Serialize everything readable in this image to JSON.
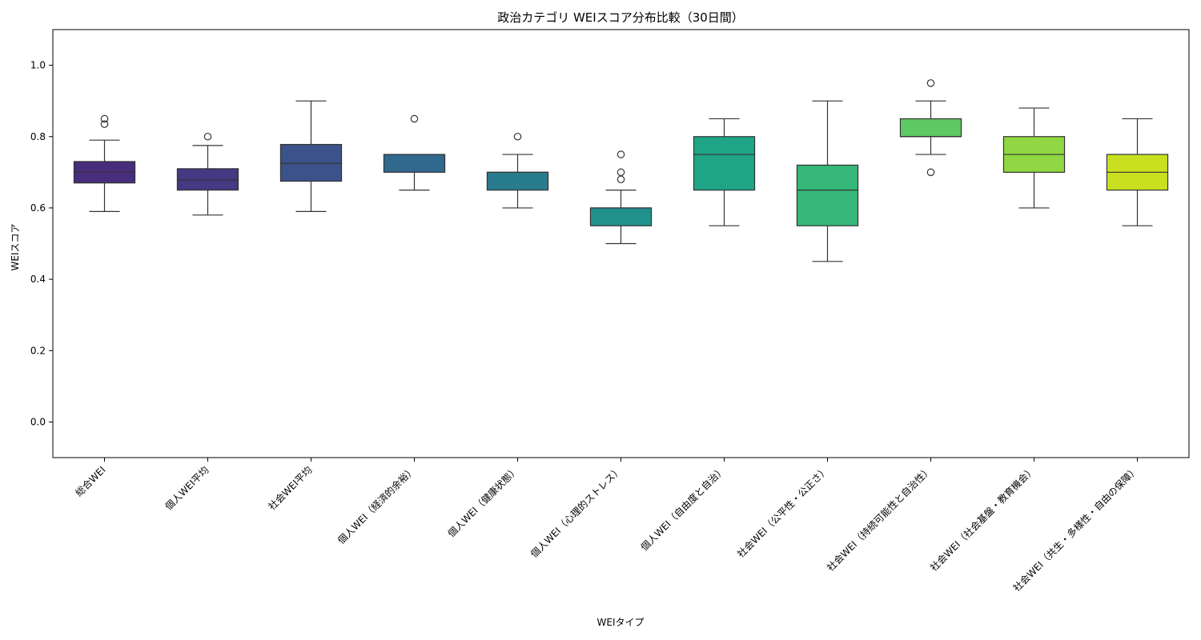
{
  "chart_data": {
    "type": "box",
    "title": "政治カテゴリ WEIスコア分布比較（30日間）",
    "xlabel": "WEIタイプ",
    "ylabel": "WEIスコア",
    "ylim": [
      -0.1,
      1.1
    ],
    "yticks": [
      0.0,
      0.2,
      0.4,
      0.6,
      0.8,
      1.0
    ],
    "ytick_labels": [
      "0.0",
      "0.2",
      "0.4",
      "0.6",
      "0.8",
      "1.0"
    ],
    "grid": false,
    "categories": [
      "総合WEI",
      "個人WEI平均",
      "社会WEI平均",
      "個人WEI（経済的余裕）",
      "個人WEI（健康状態）",
      "個人WEI（心理的ストレス）",
      "個人WEI（自由度と自治）",
      "社会WEI（公平性・公正さ）",
      "社会WEI（持続可能性と自治性）",
      "社会WEI（社会基盤・教育機会）",
      "社会WEI（共生・多様性・自由の保障）"
    ],
    "boxes": [
      {
        "whisker_low": 0.59,
        "q1": 0.67,
        "median": 0.7,
        "q3": 0.73,
        "whisker_high": 0.79,
        "outliers": [
          0.835,
          0.85
        ],
        "color": "#472d7b"
      },
      {
        "whisker_low": 0.58,
        "q1": 0.65,
        "median": 0.678,
        "q3": 0.71,
        "whisker_high": 0.775,
        "outliers": [
          0.8
        ],
        "color": "#443983"
      },
      {
        "whisker_low": 0.59,
        "q1": 0.675,
        "median": 0.725,
        "q3": 0.778,
        "whisker_high": 0.9,
        "outliers": [],
        "color": "#3b528b"
      },
      {
        "whisker_low": 0.65,
        "q1": 0.7,
        "median": 0.75,
        "q3": 0.75,
        "whisker_high": 0.75,
        "outliers": [
          0.85
        ],
        "color": "#31688e"
      },
      {
        "whisker_low": 0.6,
        "q1": 0.65,
        "median": 0.7,
        "q3": 0.7,
        "whisker_high": 0.75,
        "outliers": [
          0.8
        ],
        "color": "#287c8e"
      },
      {
        "whisker_low": 0.5,
        "q1": 0.55,
        "median": 0.6,
        "q3": 0.6,
        "whisker_high": 0.65,
        "outliers": [
          0.68,
          0.7,
          0.75
        ],
        "color": "#21918c"
      },
      {
        "whisker_low": 0.55,
        "q1": 0.65,
        "median": 0.75,
        "q3": 0.8,
        "whisker_high": 0.85,
        "outliers": [],
        "color": "#20a486"
      },
      {
        "whisker_low": 0.45,
        "q1": 0.55,
        "median": 0.65,
        "q3": 0.72,
        "whisker_high": 0.9,
        "outliers": [],
        "color": "#35b779"
      },
      {
        "whisker_low": 0.75,
        "q1": 0.8,
        "median": 0.8,
        "q3": 0.85,
        "whisker_high": 0.9,
        "outliers": [
          0.7,
          0.95
        ],
        "color": "#5ec962"
      },
      {
        "whisker_low": 0.6,
        "q1": 0.7,
        "median": 0.75,
        "q3": 0.8,
        "whisker_high": 0.88,
        "outliers": [],
        "color": "#90d743"
      },
      {
        "whisker_low": 0.55,
        "q1": 0.65,
        "median": 0.7,
        "q3": 0.75,
        "whisker_high": 0.85,
        "outliers": [],
        "color": "#c8e020"
      }
    ]
  }
}
